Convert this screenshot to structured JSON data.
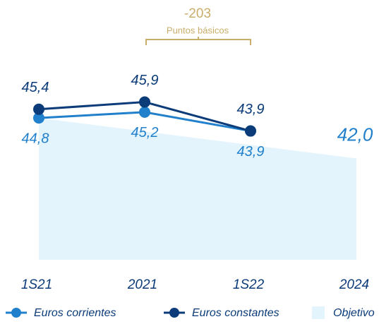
{
  "chart_data": {
    "type": "line",
    "annotations": [
      "-203",
      "Puntos básicos"
    ],
    "categories": [
      "1S21",
      "2021",
      "1S22",
      "2024"
    ],
    "series": [
      {
        "name": "Euros corrientes",
        "color": "#2180cc",
        "values": [
          44.8,
          45.2,
          43.9,
          null
        ],
        "value_labels": [
          "44,8",
          "45,2",
          "43,9",
          null
        ]
      },
      {
        "name": "Euros constantes",
        "color": "#0b3b79",
        "values": [
          45.4,
          45.9,
          43.9,
          null
        ],
        "value_labels": [
          "45,4",
          "45,9",
          "43,9",
          null
        ]
      },
      {
        "name": "Objetivo",
        "type": "area",
        "color": "#e3f4fd",
        "values": [
          44.8,
          43.87,
          42.93,
          42.0
        ],
        "value_labels": [
          null,
          null,
          null,
          "42,0"
        ]
      }
    ],
    "ylim": [
      35,
      50
    ]
  }
}
